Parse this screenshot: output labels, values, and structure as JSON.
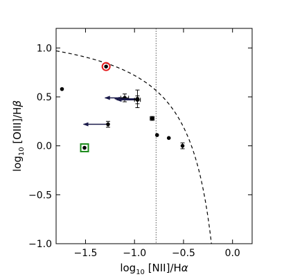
{
  "chart_data": {
    "type": "scatter",
    "xlabel_parts": {
      "prefix": "log",
      "sub": "10",
      "main": " [NII]/H",
      "greek": "α"
    },
    "ylabel_parts": {
      "prefix": "log",
      "sub": "10",
      "main": " [OIII]/H",
      "greek": "β"
    },
    "xlim": [
      -1.8,
      0.2
    ],
    "ylim": [
      -1.0,
      1.2
    ],
    "xticks": [
      -1.5,
      -1.0,
      -0.5,
      0.0
    ],
    "xtick_labels": [
      "−1.5",
      "−1.0",
      "−0.5",
      "0.0"
    ],
    "yticks": [
      -1.0,
      -0.5,
      0.0,
      0.5,
      1.0
    ],
    "ytick_labels": [
      "−1.0",
      "−0.5",
      "0.0",
      "0.5",
      "1.0"
    ],
    "vertical_line_x": -0.78,
    "demarcation_curve": {
      "a": 0.61,
      "b": 0.05,
      "c": 1.3,
      "x_max": 0.05
    },
    "points": [
      {
        "x": -1.74,
        "y": 0.58
      },
      {
        "x": -1.27,
        "y": 0.22,
        "yerr": 0.03,
        "upper_limit_to": -1.52
      },
      {
        "x": -1.1,
        "y": 0.49,
        "xerr": 0.04,
        "yerr": 0.04,
        "upper_limit_to": -1.3
      },
      {
        "x": -0.97,
        "y": 0.48,
        "yerr": 0.09,
        "upper_limit_to": -1.2
      },
      {
        "x": -0.97,
        "y": 0.47,
        "xerr": 0.03,
        "yerr": 0.04,
        "upper_limit_to": -1.18
      },
      {
        "x": -0.82,
        "y": 0.28,
        "xerr": 0.02,
        "yerr": 0.02
      },
      {
        "x": -0.77,
        "y": 0.11
      },
      {
        "x": -0.65,
        "y": 0.08
      },
      {
        "x": -0.51,
        "y": 0.0,
        "yerr": 0.03
      }
    ],
    "highlighted": [
      {
        "x": -1.29,
        "y": 0.81,
        "marker": "circle",
        "color": "#e41a1c"
      },
      {
        "x": -1.51,
        "y": -0.02,
        "marker": "square",
        "color": "#1a8a1a"
      }
    ],
    "arrow_color": "#1a1a4a"
  }
}
